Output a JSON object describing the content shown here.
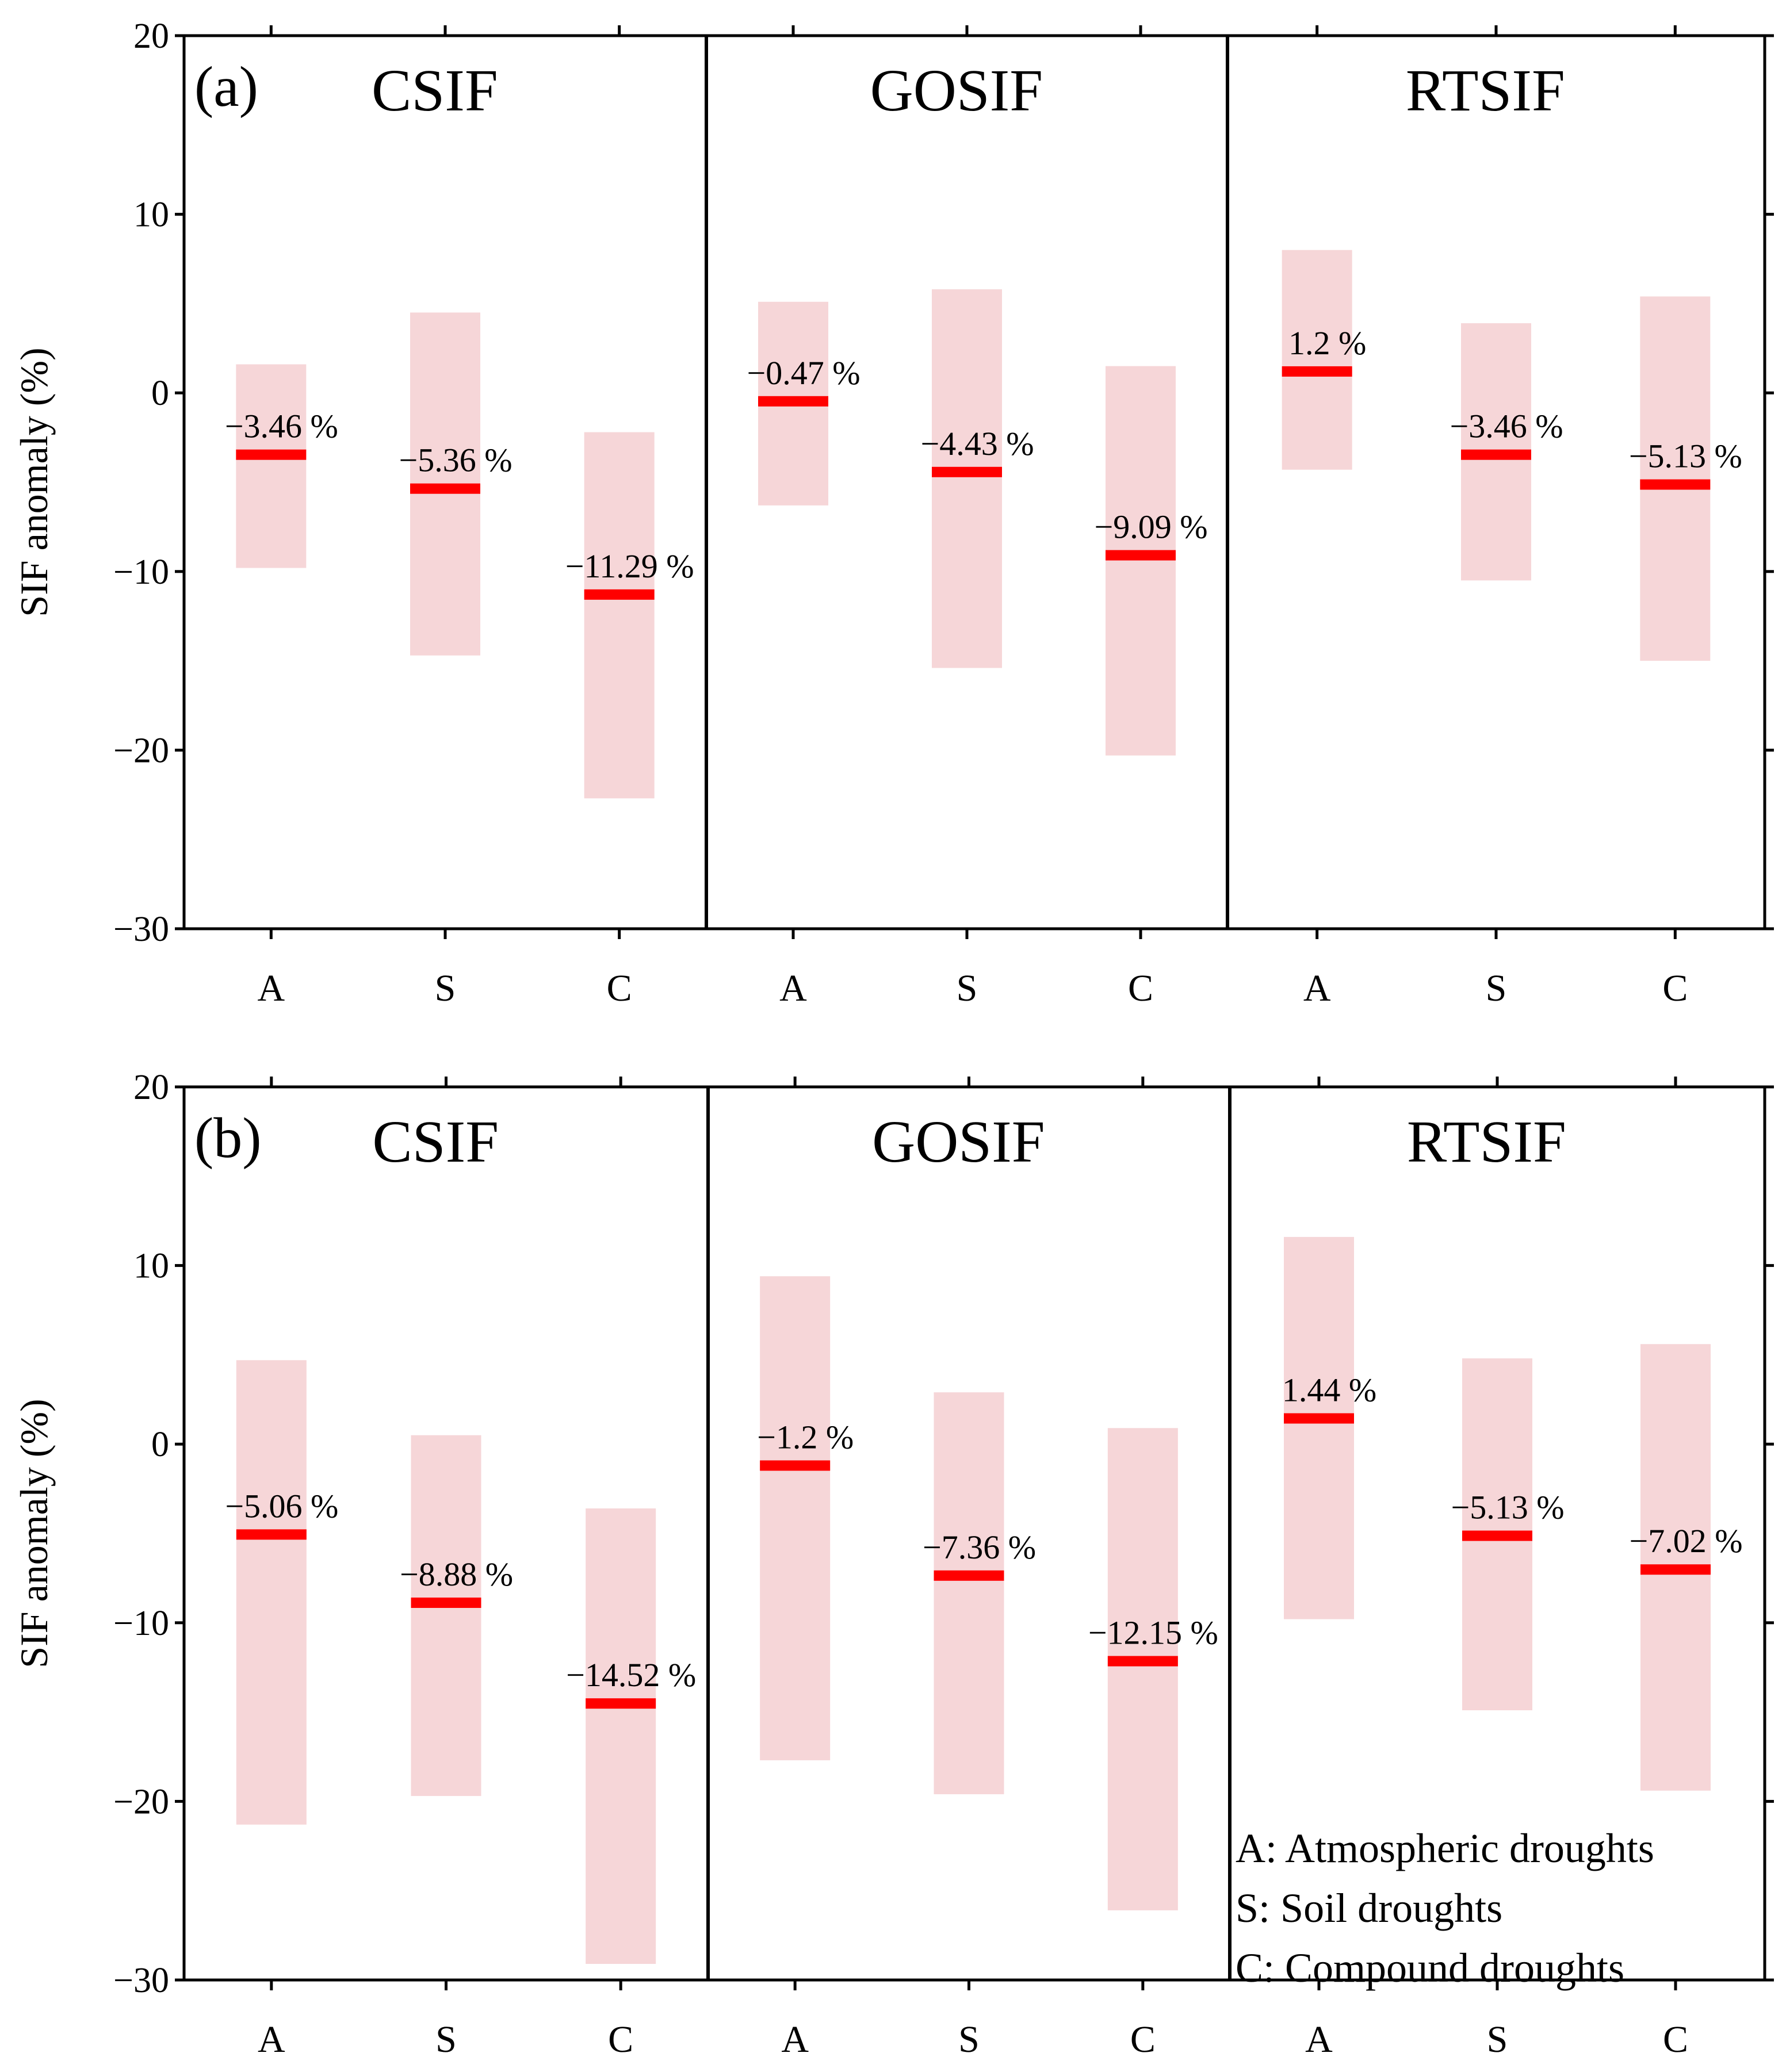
{
  "chart_data": [
    {
      "panel": "(a)",
      "type": "bar",
      "ylabel": "SIF anomaly (%)",
      "ylim": [
        -30,
        20
      ],
      "yticks": [
        20,
        10,
        0,
        -10,
        -20,
        -30
      ],
      "ytick_labels": [
        "20",
        "10",
        "0",
        "−10",
        "−20",
        "−30"
      ],
      "categories": [
        "A",
        "S",
        "C"
      ],
      "groups": [
        {
          "title": "CSIF",
          "mean": [
            -3.46,
            -5.36,
            -11.29
          ],
          "low": [
            -9.8,
            -14.7,
            -22.7
          ],
          "high": [
            1.6,
            4.5,
            -2.2
          ],
          "labels": [
            "−3.46 %",
            "−5.36 %",
            "−11.29 %"
          ]
        },
        {
          "title": "GOSIF",
          "mean": [
            -0.47,
            -4.43,
            -9.09
          ],
          "low": [
            -6.3,
            -15.4,
            -20.3
          ],
          "high": [
            5.1,
            5.8,
            1.5
          ],
          "labels": [
            "−0.47 %",
            "−4.43 %",
            "−9.09 %"
          ]
        },
        {
          "title": "RTSIF",
          "mean": [
            1.2,
            -3.46,
            -5.13
          ],
          "low": [
            -4.3,
            -10.5,
            -15.0
          ],
          "high": [
            8.0,
            3.9,
            5.4
          ],
          "labels": [
            "1.2 %",
            "−3.46 %",
            "−5.13 %"
          ]
        }
      ]
    },
    {
      "panel": "(b)",
      "type": "bar",
      "ylabel": "SIF anomaly (%)",
      "ylim": [
        -30,
        20
      ],
      "yticks": [
        20,
        10,
        0,
        -10,
        -20,
        -30
      ],
      "ytick_labels": [
        "20",
        "10",
        "0",
        "−10",
        "−20",
        "−30"
      ],
      "categories": [
        "A",
        "S",
        "C"
      ],
      "groups": [
        {
          "title": "CSIF",
          "mean": [
            -5.06,
            -8.88,
            -14.52
          ],
          "low": [
            -21.3,
            -19.7,
            -29.1
          ],
          "high": [
            4.7,
            0.5,
            -3.6
          ],
          "labels": [
            "−5.06 %",
            "−8.88 %",
            "−14.52 %"
          ]
        },
        {
          "title": "GOSIF",
          "mean": [
            -1.2,
            -7.36,
            -12.15
          ],
          "low": [
            -17.7,
            -19.6,
            -26.1
          ],
          "high": [
            9.4,
            2.9,
            0.9
          ],
          "labels": [
            "−1.2 %",
            "−7.36 %",
            "−12.15 %"
          ]
        },
        {
          "title": "RTSIF",
          "mean": [
            1.44,
            -5.13,
            -7.02
          ],
          "low": [
            -9.8,
            -14.9,
            -19.4
          ],
          "high": [
            11.6,
            4.8,
            5.6
          ],
          "labels": [
            "1.44 %",
            "−5.13 %",
            "−7.02 %"
          ]
        }
      ],
      "legend": [
        "A: Atmospheric droughts",
        "S: Soil droughts",
        "C: Compound droughts"
      ]
    }
  ],
  "colors": {
    "range": "#f6d6d8",
    "mean": "#ff0000",
    "axis": "#000000"
  }
}
